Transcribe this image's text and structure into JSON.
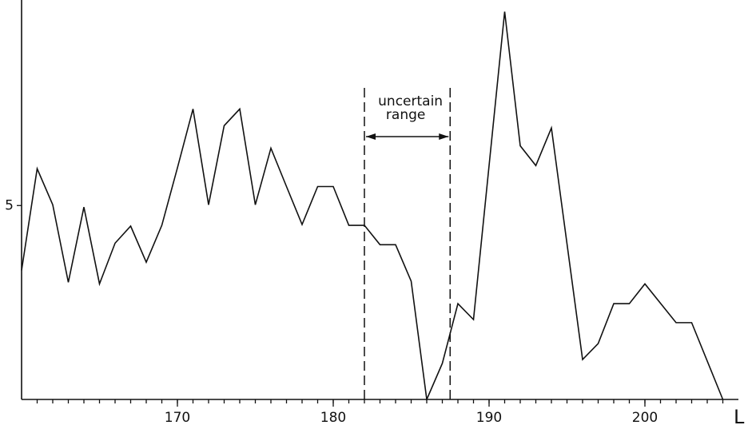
{
  "chart_data": {
    "type": "line",
    "x": [
      160,
      161,
      162,
      163,
      164,
      165,
      166,
      167,
      168,
      169,
      170,
      171,
      172,
      173,
      174,
      175,
      176,
      177,
      178,
      179,
      180,
      181,
      182,
      183,
      184,
      185,
      186,
      187,
      188,
      189,
      191,
      192,
      193,
      194,
      196,
      197,
      198,
      199,
      200,
      202,
      203,
      205
    ],
    "series": [
      {
        "color": "#111111",
        "values": [
          3.33,
          5.95,
          5.02,
          3.02,
          4.96,
          2.98,
          4.03,
          4.47,
          3.54,
          4.49,
          5.97,
          7.49,
          5.02,
          7.06,
          7.49,
          5.02,
          6.48,
          5.49,
          4.51,
          5.49,
          5.49,
          4.49,
          4.49,
          3.99,
          3.99,
          3.05,
          0,
          0.93,
          2.47,
          2.06,
          10.0,
          6.54,
          6.03,
          7.0,
          1.03,
          1.44,
          2.47,
          2.47,
          2.98,
          1.98,
          1.98,
          0
        ]
      }
    ],
    "xlim": [
      160,
      206
    ],
    "xticks": [
      170,
      180,
      190,
      200
    ],
    "x_minor_step": 1,
    "ylim": [
      0,
      10.3
    ],
    "yticks": [
      5
    ],
    "x_label": "L",
    "annotation": {
      "lines": [
        "uncertain",
        "range"
      ],
      "x": [
        182,
        187.5
      ]
    },
    "grid": false
  }
}
